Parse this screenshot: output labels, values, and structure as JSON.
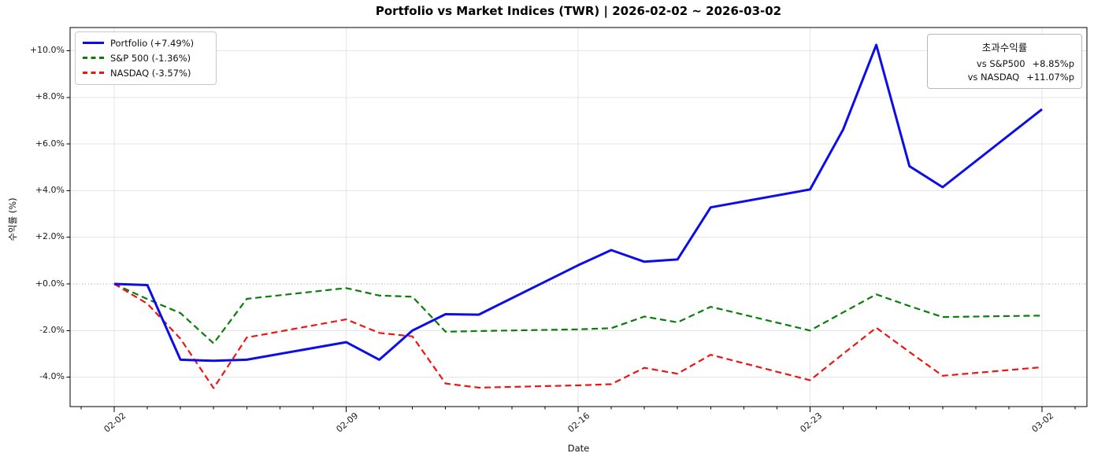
{
  "title": "Portfolio vs Market Indices (TWR) | 2026-02-02 ~ 2026-03-02",
  "legend": {
    "items": [
      {
        "label": "Portfolio (+7.49%)",
        "color": "#0d0deb",
        "style": "solid"
      },
      {
        "label": "S&P 500 (-1.36%)",
        "color": "#0a7d0a",
        "style": "dashed"
      },
      {
        "label": "NASDAQ (-3.57%)",
        "color": "#ee1414",
        "style": "dashed"
      }
    ]
  },
  "annotation": {
    "title": "초과수익률",
    "rows": [
      {
        "label": "vs S&P500",
        "value": "+8.85%p"
      },
      {
        "label": "vs NASDAQ",
        "value": "+11.07%p"
      }
    ]
  },
  "axes": {
    "xlabel": "Date",
    "ylabel": "수익률 (%)",
    "x_tick_labels": [
      "02-02",
      "02-09",
      "02-16",
      "02-23",
      "03-02"
    ],
    "y_tick_labels": [
      "+10.0%",
      "+8.0%",
      "+6.0%",
      "+4.0%",
      "+2.0%",
      "+0.0%",
      "-2.0%",
      "-4.0%"
    ]
  },
  "chart_data": {
    "type": "line",
    "title": "Portfolio vs Market Indices (TWR) | 2026-02-02 ~ 2026-03-02",
    "xlabel": "Date",
    "ylabel": "수익률 (%)",
    "x": [
      "02-02",
      "02-03",
      "02-04",
      "02-05",
      "02-06",
      "02-09",
      "02-10",
      "02-11",
      "02-12",
      "02-13",
      "02-16",
      "02-17",
      "02-18",
      "02-19",
      "02-20",
      "02-23",
      "02-24",
      "02-25",
      "02-26",
      "02-27",
      "03-02"
    ],
    "series": [
      {
        "name": "Portfolio (+7.49%)",
        "color": "#0d0deb",
        "style": "solid",
        "linewidth": 3,
        "values": [
          0.0,
          -0.05,
          -3.25,
          -3.3,
          -3.25,
          -2.5,
          -3.25,
          -2.0,
          -1.3,
          -1.32,
          0.8,
          1.45,
          0.95,
          1.05,
          3.28,
          4.05,
          6.62,
          10.25,
          5.05,
          4.15,
          7.49
        ]
      },
      {
        "name": "S&P 500 (-1.36%)",
        "color": "#0a7d0a",
        "style": "dashed",
        "linewidth": 2.2,
        "values": [
          0.0,
          -0.65,
          -1.25,
          -2.55,
          -0.64,
          -0.18,
          -0.5,
          -0.55,
          -2.05,
          -2.02,
          -1.95,
          -1.9,
          -1.4,
          -1.65,
          -0.98,
          -2.0,
          -1.22,
          -0.45,
          -0.95,
          -1.42,
          -1.36
        ]
      },
      {
        "name": "NASDAQ (-3.57%)",
        "color": "#ee1414",
        "style": "dashed",
        "linewidth": 2.2,
        "values": [
          0.0,
          -0.85,
          -2.35,
          -4.47,
          -2.3,
          -1.52,
          -2.1,
          -2.25,
          -4.27,
          -4.45,
          -4.35,
          -4.3,
          -3.6,
          -3.85,
          -3.04,
          -4.13,
          -3.0,
          -1.88,
          -2.92,
          -3.94,
          -3.57
        ]
      }
    ],
    "y_ticks": [
      10,
      8,
      6,
      4,
      2,
      0,
      -2,
      -4
    ],
    "x_major_ticks": [
      "02-02",
      "02-09",
      "02-16",
      "02-23",
      "03-02"
    ],
    "ylim": [
      -5.26,
      11.0
    ],
    "grid": true,
    "zero_line_dotted": true,
    "legend_position": "upper left"
  }
}
